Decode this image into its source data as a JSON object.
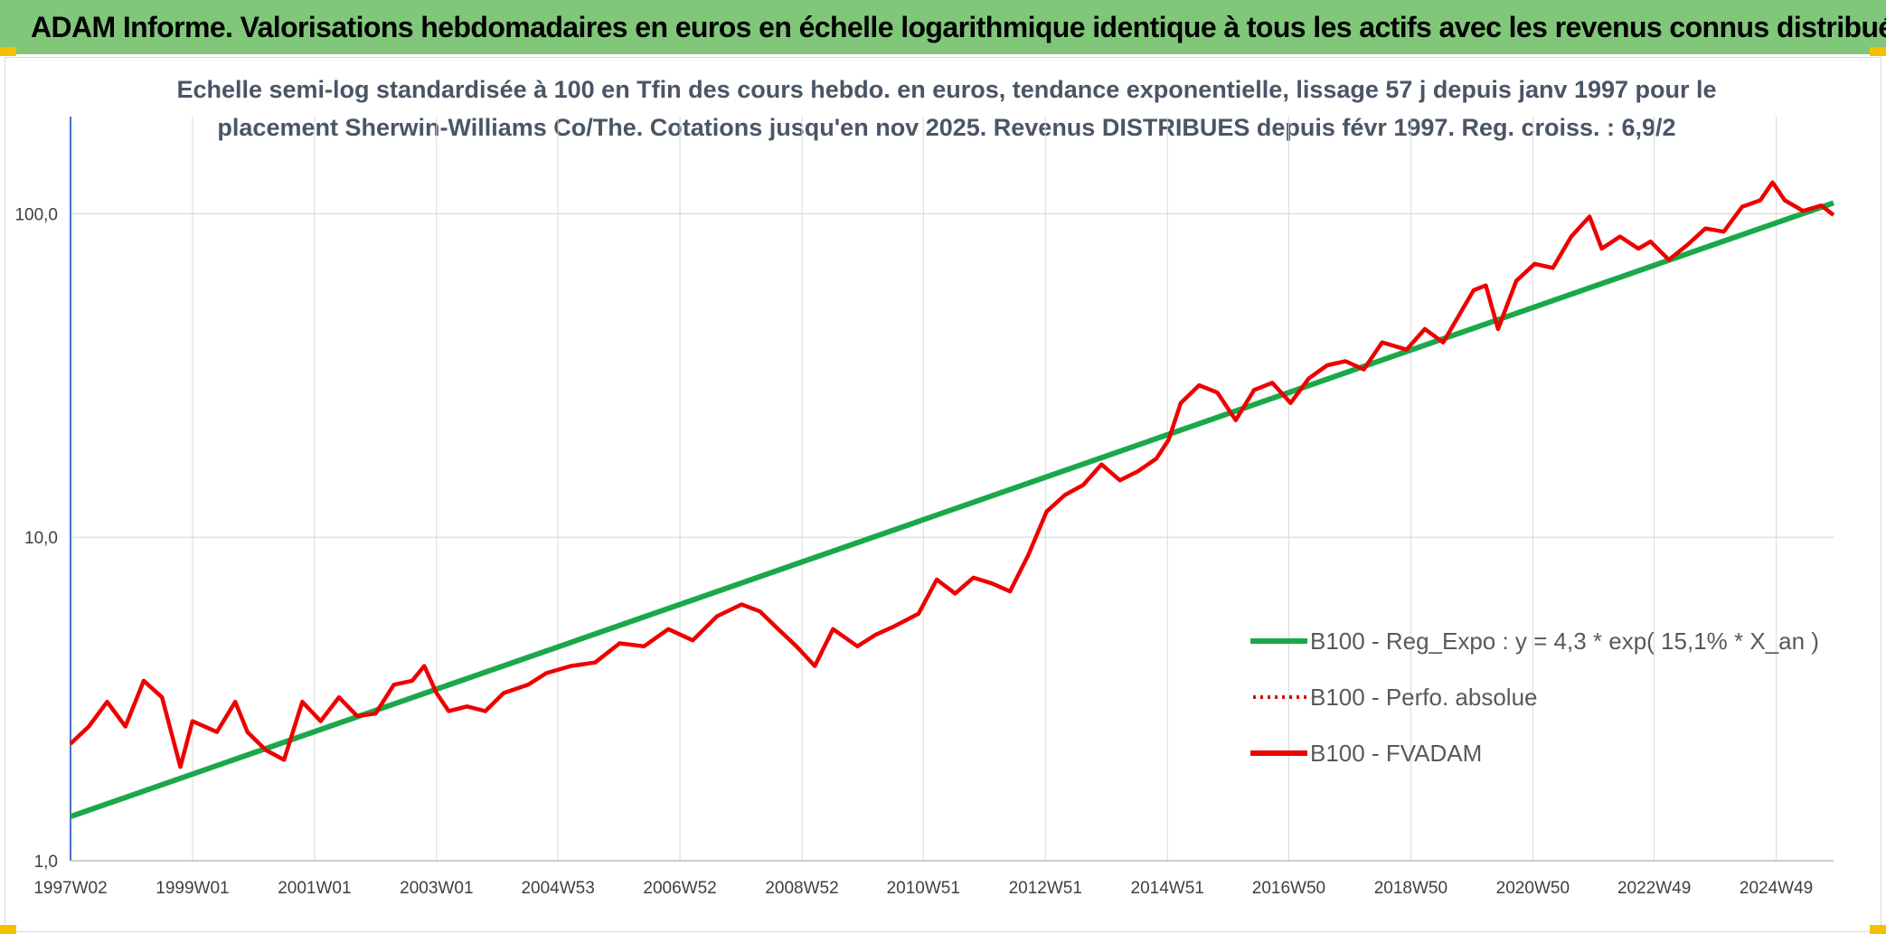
{
  "header": {
    "title": "ADAM Informe. Valorisations hebdomadaires en euros en échelle logarithmique identique à tous les actifs avec les revenus connus distribués"
  },
  "colors": {
    "banner": "#80c77a",
    "regression": "#1aa84a",
    "perfo": "#e00000",
    "fvadam": "#ee0000",
    "grid": "#d9d9d9",
    "axis": "#4472c4"
  },
  "chart_data": {
    "type": "line",
    "scale": "log",
    "title_lines": [
      "Echelle semi-log standardisée à 100 en Tfin des cours hebdo. en euros, tendance exponentielle, lissage 57 j depuis janv 1997 pour le",
      "placement Sherwin-Williams Co/The. Cotations jusqu'en nov 2025. Revenus DISTRIBUES depuis févr 1997. Reg. croiss. : 6,9/2"
    ],
    "ylim": [
      1,
      100
    ],
    "y_ticks": [
      1,
      10,
      100
    ],
    "y_tick_labels": [
      "1,0",
      "10,0",
      "100,0"
    ],
    "xlim": [
      1997.0,
      2025.9
    ],
    "x_ticks": [
      1997.0,
      1999.0,
      2001.0,
      2003.0,
      2004.99,
      2006.99,
      2008.99,
      2010.98,
      2012.98,
      2014.98,
      2016.97,
      2018.97,
      2020.97,
      2022.96,
      2024.96
    ],
    "x_tick_labels": [
      "1997W02",
      "1999W01",
      "2001W01",
      "2003W01",
      "2004W53",
      "2006W52",
      "2008W52",
      "2010W51",
      "2012W51",
      "2014W51",
      "2016W50",
      "2018W50",
      "2020W50",
      "2022W49",
      "2024W49"
    ],
    "legend": {
      "position": "lower-right",
      "items": [
        "B100 - Reg_Expo : y = 4,3 * exp( 15,1% *  X_an )",
        "B100 - Perfo. absolue",
        "B100 - FVADAM"
      ]
    },
    "series": [
      {
        "name": "B100 - Reg_Expo",
        "style": "solid",
        "x": [
          1997.0,
          2025.9
        ],
        "y": [
          1.37,
          108
        ]
      },
      {
        "name": "B100 - Perfo. absolue",
        "style": "dotted",
        "x": [],
        "y": []
      },
      {
        "name": "B100 - FVADAM",
        "style": "solid",
        "x": [
          1997.0,
          1997.3,
          1997.6,
          1997.9,
          1998.2,
          1998.5,
          1998.8,
          1999.0,
          1999.4,
          1999.7,
          1999.9,
          2000.2,
          2000.5,
          2000.8,
          2001.1,
          2001.4,
          2001.7,
          2002.0,
          2002.3,
          2002.6,
          2002.8,
          2003.0,
          2003.2,
          2003.5,
          2003.8,
          2004.1,
          2004.5,
          2004.8,
          2005.2,
          2005.6,
          2006.0,
          2006.4,
          2006.8,
          2007.2,
          2007.6,
          2008.0,
          2008.3,
          2008.6,
          2008.9,
          2009.2,
          2009.5,
          2009.9,
          2010.2,
          2010.5,
          2010.9,
          2011.2,
          2011.5,
          2011.8,
          2012.1,
          2012.4,
          2012.7,
          2013.0,
          2013.3,
          2013.6,
          2013.9,
          2014.2,
          2014.5,
          2014.8,
          2015.0,
          2015.2,
          2015.5,
          2015.8,
          2016.1,
          2016.4,
          2016.7,
          2017.0,
          2017.3,
          2017.6,
          2017.9,
          2018.2,
          2018.5,
          2018.9,
          2019.2,
          2019.5,
          2019.8,
          2020.0,
          2020.2,
          2020.4,
          2020.7,
          2021.0,
          2021.3,
          2021.6,
          2021.9,
          2022.1,
          2022.4,
          2022.7,
          2022.9,
          2023.2,
          2023.5,
          2023.8,
          2024.1,
          2024.4,
          2024.7,
          2024.9,
          2025.1,
          2025.4,
          2025.7,
          2025.9
        ],
        "y": [
          2.3,
          2.6,
          3.1,
          2.6,
          3.6,
          3.2,
          1.95,
          2.7,
          2.5,
          3.1,
          2.5,
          2.2,
          2.05,
          3.1,
          2.7,
          3.2,
          2.8,
          2.85,
          3.5,
          3.6,
          4.0,
          3.3,
          2.9,
          3.0,
          2.9,
          3.3,
          3.5,
          3.8,
          4.0,
          4.1,
          4.7,
          4.6,
          5.2,
          4.8,
          5.7,
          6.2,
          5.9,
          5.2,
          4.6,
          4.0,
          5.2,
          4.6,
          5.0,
          5.3,
          5.8,
          7.4,
          6.7,
          7.5,
          7.2,
          6.8,
          8.8,
          12.0,
          13.5,
          14.5,
          16.8,
          15.0,
          16.0,
          17.5,
          20.0,
          26.0,
          29.5,
          28.0,
          23.0,
          28.5,
          30.0,
          26.0,
          31.0,
          34.0,
          35.0,
          33.0,
          40.0,
          38.0,
          44.0,
          40.0,
          50.0,
          58.0,
          60.0,
          44.0,
          62.0,
          70.0,
          68.0,
          85.0,
          98.0,
          78.0,
          85.0,
          78.0,
          82.0,
          72.0,
          80.0,
          90.0,
          88.0,
          105.0,
          110.0,
          125.0,
          110.0,
          102.0,
          106.0,
          99.0
        ]
      }
    ]
  }
}
